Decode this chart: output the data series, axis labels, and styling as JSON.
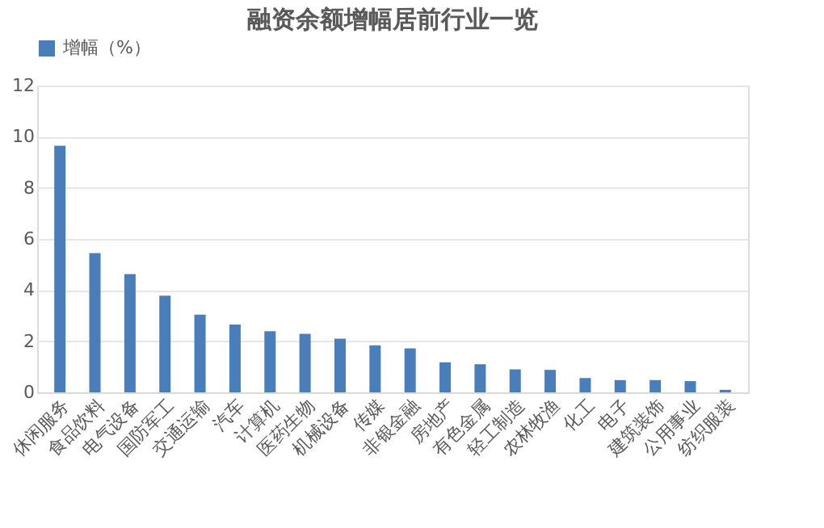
{
  "chart_data": {
    "type": "bar",
    "title": "融资余额增幅居前行业一览",
    "categories": [
      "休闲服务",
      "食品饮料",
      "电气设备",
      "国防军工",
      "交通运输",
      "汽车",
      "计算机",
      "医药生物",
      "机械设备",
      "传媒",
      "非银金融",
      "房地产",
      "有色金属",
      "轻工制造",
      "农林牧渔",
      "化工",
      "电子",
      "建筑装饰",
      "公用事业",
      "纺织服装"
    ],
    "series": [
      {
        "name": "增幅（%）",
        "color": "#4a7ebb",
        "values": [
          9.65,
          5.45,
          4.63,
          3.78,
          3.04,
          2.65,
          2.39,
          2.29,
          2.1,
          1.84,
          1.72,
          1.18,
          1.1,
          0.9,
          0.88,
          0.56,
          0.48,
          0.48,
          0.44,
          0.1
        ]
      }
    ],
    "ylim": [
      0,
      12
    ],
    "yticks": [
      0,
      2,
      4,
      6,
      8,
      10,
      12
    ],
    "grid": "y",
    "legend": "top"
  }
}
